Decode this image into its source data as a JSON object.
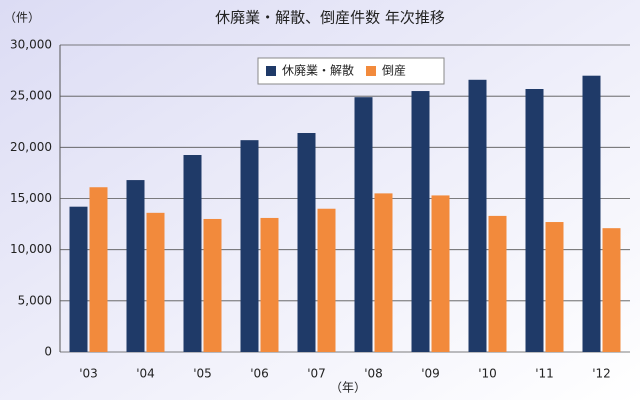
{
  "chart_data": {
    "type": "bar",
    "title": "休廃業・解散、倒産件数 年次推移",
    "y_unit": "（件）",
    "x_unit": "（年）",
    "categories": [
      "'03",
      "'04",
      "'05",
      "'06",
      "'07",
      "'08",
      "'09",
      "'10",
      "'11",
      "'12"
    ],
    "series": [
      {
        "name": "休廃業・解散",
        "color": "#1f3a68",
        "values": [
          14200,
          16800,
          19250,
          20700,
          21400,
          24900,
          25500,
          26600,
          25700,
          27000
        ]
      },
      {
        "name": "倒産",
        "color": "#f28a3c",
        "values": [
          16100,
          13600,
          13000,
          13100,
          14000,
          15500,
          15300,
          13300,
          12700,
          12100
        ]
      }
    ],
    "ylim": [
      0,
      30000
    ],
    "yticks": [
      0,
      {
        "value": 5000,
        "label": "5,000"
      },
      {
        "value": 10000,
        "label": "10,000"
      },
      {
        "value": 15000,
        "label": "15,000"
      },
      {
        "value": 20000,
        "label": "20,000"
      },
      {
        "value": 25000,
        "label": "25,000"
      },
      {
        "value": 30000,
        "label": "30,000"
      }
    ],
    "grid": true,
    "legend": "top"
  }
}
